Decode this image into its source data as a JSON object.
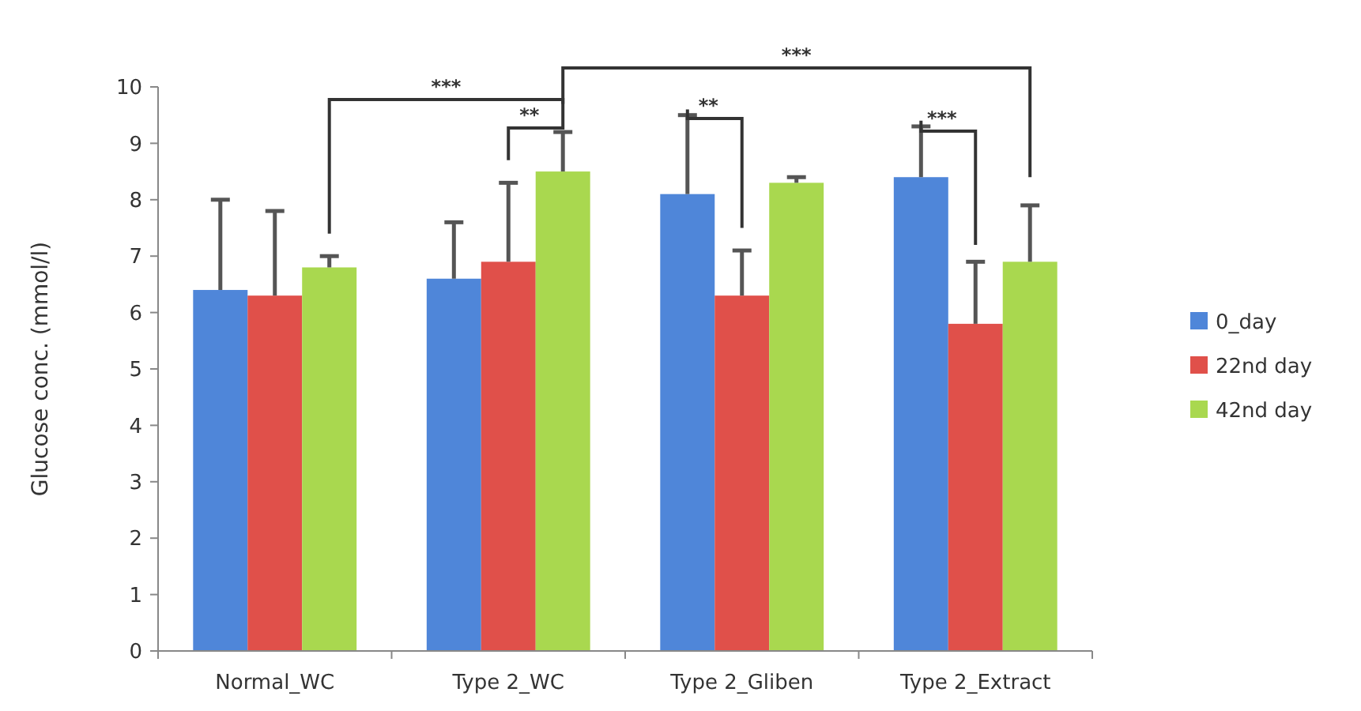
{
  "chart_data": {
    "type": "bar",
    "ylabel": "Glucose conc. (mmol/l)",
    "categories": [
      "Normal_WC",
      "Type 2_WC",
      "Type 2_Gliben",
      "Type 2_Extract"
    ],
    "series": [
      {
        "name": "0_day",
        "color": "#4f86d9",
        "values": [
          6.4,
          6.6,
          8.1,
          8.4
        ],
        "errors": [
          [
            6.4,
            8.0
          ],
          [
            6.6,
            7.6
          ],
          [
            8.1,
            9.5
          ],
          [
            8.4,
            9.3
          ]
        ]
      },
      {
        "name": "22nd day",
        "color": "#e0504a",
        "values": [
          6.3,
          6.9,
          6.3,
          5.8
        ],
        "errors": [
          [
            6.3,
            7.8
          ],
          [
            6.9,
            8.3
          ],
          [
            6.3,
            7.1
          ],
          [
            5.8,
            6.9
          ]
        ]
      },
      {
        "name": "42nd day",
        "color": "#a9d84f",
        "values": [
          6.8,
          8.5,
          8.3,
          6.9
        ],
        "errors": [
          [
            6.8,
            7.0
          ],
          [
            8.5,
            9.2
          ],
          [
            8.3,
            8.4
          ],
          [
            6.9,
            7.9
          ]
        ]
      }
    ],
    "ylim": [
      0,
      10
    ],
    "yticks": [
      0,
      1,
      2,
      3,
      4,
      5,
      6,
      7,
      8,
      9,
      10
    ],
    "grid": false,
    "legend": "right",
    "annotations": [
      "***",
      "**",
      "***",
      "**",
      "***"
    ]
  }
}
